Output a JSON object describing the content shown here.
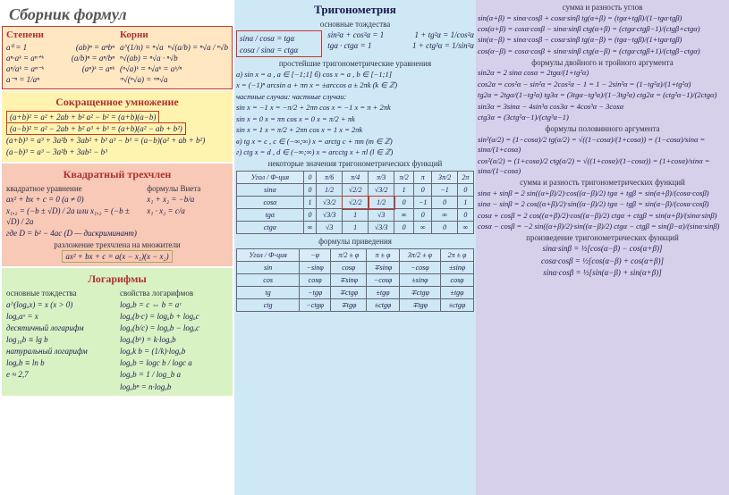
{
  "title": "Сборник формул",
  "colors": {
    "left_bg1": "#ffe7c2",
    "left_bg2": "#fff3b0",
    "left_bg3": "#f7c9b6",
    "left_bg4": "#d9f2c4",
    "mid_bg": "#cfe8f5",
    "right_bg": "#d6d0ea",
    "title_red": "#b03030",
    "border_red": "#c0392b",
    "text": "#1a1a4a"
  },
  "left": {
    "powers": {
      "title_l": "Степени",
      "title_r": "Корни",
      "rows_l": [
        [
          "a⁰ = 1",
          "(ab)ⁿ = aⁿbⁿ"
        ],
        [
          "aⁿ·aᵏ = aⁿ⁺ᵏ",
          "(a/b)ⁿ = aⁿ/bⁿ"
        ],
        [
          "aⁿ/aᵏ = aⁿ⁻ᵏ",
          "(aⁿ)ᵏ = aⁿᵏ"
        ],
        [
          "a⁻ⁿ = 1/aⁿ",
          ""
        ]
      ],
      "rows_r": [
        [
          "a^(1/n) = ⁿ√a",
          "ⁿ√(a/b) = ⁿ√a / ⁿ√b"
        ],
        [
          "ⁿ√(ab) = ⁿ√a · ⁿ√b",
          ""
        ],
        [
          "(ⁿ√a)ᵏ = ⁿ√aᵏ = aᵏ/ⁿ",
          ""
        ],
        [
          "ᵐ√(ⁿ√a) = ᵐⁿ√a",
          ""
        ]
      ]
    },
    "mult": {
      "title": "Сокращенное умножение",
      "lines": [
        "(a+b)² = a² + 2ab + b²        a² − b² = (a+b)(a−b)",
        "(a−b)² = a² − 2ab + b²        a³ + b³ = (a+b)(a² − ab + b²)",
        "(a+b)³ = a³ + 3a²b + 3ab² + b³   a³ − b³ = (a−b)(a² + ab + b²)",
        "(a−b)³ = a³ − 3a²b + 3ab² − b³"
      ],
      "box_idx": [
        0,
        1
      ]
    },
    "quad": {
      "title": "Квадратный трехчлен",
      "sub_l": "квадратное уравнение",
      "sub_r": "формулы Виета",
      "lines_l": [
        "ax² + bx + c = 0   (a ≠ 0)",
        "x₁,₂ = (−b ± √D) / 2a   или   x₁,₂ = (−b ± √D) / 2a",
        "где D = b² − 4ac   (D — дискриминант)"
      ],
      "lines_r": [
        "x₁ + x₂ = −b/a",
        "x₁ · x₂ = c/a"
      ],
      "factor_title": "разложение трехчлена на множители",
      "factor": "ax² + bx + c = a(x − x₁)(x − x₂)"
    },
    "log": {
      "title": "Логарифмы",
      "sub_l": "основные тождества",
      "sub_r": "свойства логарифмов",
      "lines_l": [
        "a^(logₐx) = x   (x > 0)",
        "logₐaˣ = x",
        "десятичный логарифм",
        "log₁₀b ≡ lg b",
        "натуральный логарифм",
        "logₑb ≡ ln b",
        "e ≈ 2,7"
      ],
      "lines_r": [
        "logₐb = c  ⇔  b = aᶜ",
        "logₐ(b·c) = logₐb + logₐc",
        "logₐ(b/c) = logₐb − logₐc",
        "logₐ(bᵏ) = k·logₐb",
        "logₐk b = (1/k)·logₐb",
        "logₐb = logc b / logc a",
        "logₐb = 1 / log_b a",
        "logₐbⁿ = n·logₐb"
      ]
    }
  },
  "mid": {
    "title": "Тригонометрия",
    "ident_title": "основные тождества",
    "ident_box": [
      "sinα / cosα = tgα",
      "cosα / sinα = ctgα"
    ],
    "ident_rows": [
      [
        "sin²α + cos²α = 1",
        "1 + tg²α = 1/cos²α"
      ],
      [
        "tgα · ctgα = 1",
        "1 + ctg²α = 1/sin²α"
      ]
    ],
    "eq_title": "простейшие тригонометрические уравнения",
    "eq_lines": [
      "a)  sin x = a ,  a ∈ [−1;1]        б)  cos x = a ,  b ∈ [−1;1]",
      "x = (−1)ⁿ arcsin a + πn          x = ±arccos a ± 2πk   (k ∈ ℤ)",
      "частные случаи:                   частные случаи:",
      "sin x = −1     x = −π/2 + 2πn     cos x = −1   x = π + 2πk",
      "sin x = 0      x = πn             cos x = 0    x = π/2 + πk",
      "sin x = 1      x = π/2 + 2πn      cos x = 1    x = 2πk",
      "в)  tg x = c ,  c ∈ (−∞;∞)    x = arctg c + πm   (m ∈ ℤ)",
      "г)  ctg x = d ,  d ∈ (−∞;∞)   x = arcctg x + πl   (l ∈ ℤ)"
    ],
    "table_title": "некоторые значения тригонометрических функций",
    "trig_table": {
      "header": [
        "Угол / Ф-ция",
        "0",
        "π/6",
        "π/4",
        "π/3",
        "π/2",
        "π",
        "3π/2",
        "2π"
      ],
      "rows": [
        [
          "sinα",
          "0",
          "1/2",
          "√2/2",
          "√3/2",
          "1",
          "0",
          "−1",
          "0"
        ],
        [
          "cosα",
          "1",
          "√3/2",
          "√2/2",
          "1/2",
          "0",
          "−1",
          "0",
          "1"
        ],
        [
          "tgα",
          "0",
          "√3/3",
          "1",
          "√3",
          "∞",
          "0",
          "∞",
          "0"
        ],
        [
          "ctgα",
          "∞",
          "√3",
          "1",
          "√3/3",
          "0",
          "∞",
          "0",
          "∞"
        ]
      ]
    },
    "reduce_title": "формулы приведения",
    "reduce_table": {
      "header": [
        "Угол / Ф-ция",
        "−φ",
        "π/2 ± φ",
        "π ± φ",
        "3π/2 ± φ",
        "2π ± φ"
      ],
      "rows": [
        [
          "sin",
          "−sinφ",
          "cosφ",
          "∓sinφ",
          "−cosφ",
          "±sinφ"
        ],
        [
          "cos",
          "cosφ",
          "∓sinφ",
          "−cosφ",
          "±sinφ",
          "cosφ"
        ],
        [
          "tg",
          "−tgφ",
          "∓ctgφ",
          "±tgφ",
          "∓ctgφ",
          "±tgφ"
        ],
        [
          "ctg",
          "−ctgφ",
          "∓tgφ",
          "±ctgφ",
          "∓tgφ",
          "±ctgφ"
        ]
      ]
    }
  },
  "right": {
    "sum_title": "сумма и разность углов",
    "sum_lines": [
      "sin(α+β) = sinα·cosβ + cosα·sinβ     tg(α+β) = (tgα+tgβ)/(1−tgα·tgβ)",
      "cos(α+β) = cosα·cosβ − sinα·sinβ     ctg(α+β) = (ctgα·ctgβ−1)/(ctgβ+ctgα)",
      "sin(α−β) = sinα·cosβ − cosα·sinβ     tg(α−β) = (tgα−tgβ)/(1+tgα·tgβ)",
      "cos(α−β) = cosα·cosβ + sinα·sinβ     ctg(α−β) = (ctgα·ctgβ+1)/(ctgβ−ctgα)"
    ],
    "double_title": "формулы двойного и тройного аргумента",
    "double_lines": [
      "sin2α = 2 sinα cosα = 2tgα/(1+tg²α)",
      "cos2α = cos²α − sin²α = 2cos²α − 1 = 1 − 2sin²α = (1−tg²α)/(1+tg²α)",
      "tg2α = 2tgα/(1−tg²α)    tg3α = (3tgα−tg³α)/(1−3tg²α)    ctg2α = (ctg²α−1)/(2ctgα)",
      "sin3α = 3sinα − 4sin³α              cos3α = 4cos³α − 3cosα",
      "                                      ctg3α = (3ctg²α−1)/(ctg³α−1)"
    ],
    "half_title": "формулы половинного аргумента",
    "half_lines": [
      "sin²(α/2) = (1−cosα)/2    tg(α/2) = √((1−cosα)/(1+cosα)) = (1−cosα)/sinα = sinα/(1+cosα)",
      "cos²(α/2) = (1+cosα)/2    ctg(α/2) = √((1+cosα)/(1−cosα)) = (1+cosα)/sinα = sinα/(1−cosα)"
    ],
    "sumdiff_title": "сумма и разность тригонометрических функций",
    "sumdiff_lines": [
      "sinα + sinβ = 2 sin((α+β)/2)·cos((α−β)/2)     tgα + tgβ = sin(α+β)/(cosα·cosβ)",
      "sinα − sinβ = 2 cos((α+β)/2)·sin((α−β)/2)     tgα − tgβ = sin(α−β)/(cosα·cosβ)",
      "cosα + cosβ = 2 cos((α+β)/2)·cos((α−β)/2)     ctgα + ctgβ = sin(α+β)/(sinα·sinβ)",
      "cosα − cosβ = −2 sin((α+β)/2)·sin((α−β)/2)    ctgα − ctgβ = sin(β−α)/(sinα·sinβ)"
    ],
    "prod_title": "произведение тригонометрических функций",
    "prod_lines": [
      "sinα·sinβ = ½[cos(α−β) − cos(α+β)]",
      "cosα·cosβ = ½[cos(α−β) + cos(α+β)]",
      "sinα·cosβ = ½[sin(α−β) + sin(α+β)]"
    ]
  }
}
